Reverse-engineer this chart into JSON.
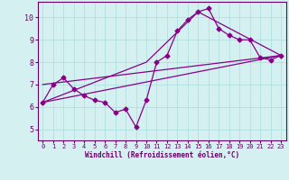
{
  "title": "",
  "xlabel": "Windchill (Refroidissement éolien,°C)",
  "bg_color": "#d4f0f0",
  "line_color": "#880088",
  "xlim": [
    -0.5,
    23.5
  ],
  "ylim": [
    4.5,
    10.7
  ],
  "xticks": [
    0,
    1,
    2,
    3,
    4,
    5,
    6,
    7,
    8,
    9,
    10,
    11,
    12,
    13,
    14,
    15,
    16,
    17,
    18,
    19,
    20,
    21,
    22,
    23
  ],
  "yticks": [
    5,
    6,
    7,
    8,
    9,
    10
  ],
  "line1_x": [
    0,
    1,
    2,
    3,
    4,
    5,
    6,
    7,
    8,
    9,
    10,
    11,
    12,
    13,
    14,
    15,
    16,
    17,
    18,
    19,
    20,
    21,
    22,
    23
  ],
  "line1_y": [
    6.2,
    7.0,
    7.3,
    6.8,
    6.5,
    6.3,
    6.2,
    5.75,
    5.9,
    5.1,
    6.3,
    8.0,
    8.3,
    9.4,
    9.9,
    10.25,
    10.4,
    9.5,
    9.2,
    9.0,
    9.0,
    8.2,
    8.1,
    8.3
  ],
  "line2_x": [
    0,
    10,
    15,
    23
  ],
  "line2_y": [
    6.2,
    8.0,
    10.25,
    8.3
  ],
  "line3_x": [
    0,
    23
  ],
  "line3_y": [
    6.2,
    8.3
  ],
  "line4_x": [
    0,
    23
  ],
  "line4_y": [
    7.0,
    8.3
  ],
  "grid_color": "#aadddd",
  "tick_color": "#660066",
  "xlabel_color": "#660066",
  "marker_style": "D",
  "marker_size": 2.5,
  "linewidth": 0.9
}
